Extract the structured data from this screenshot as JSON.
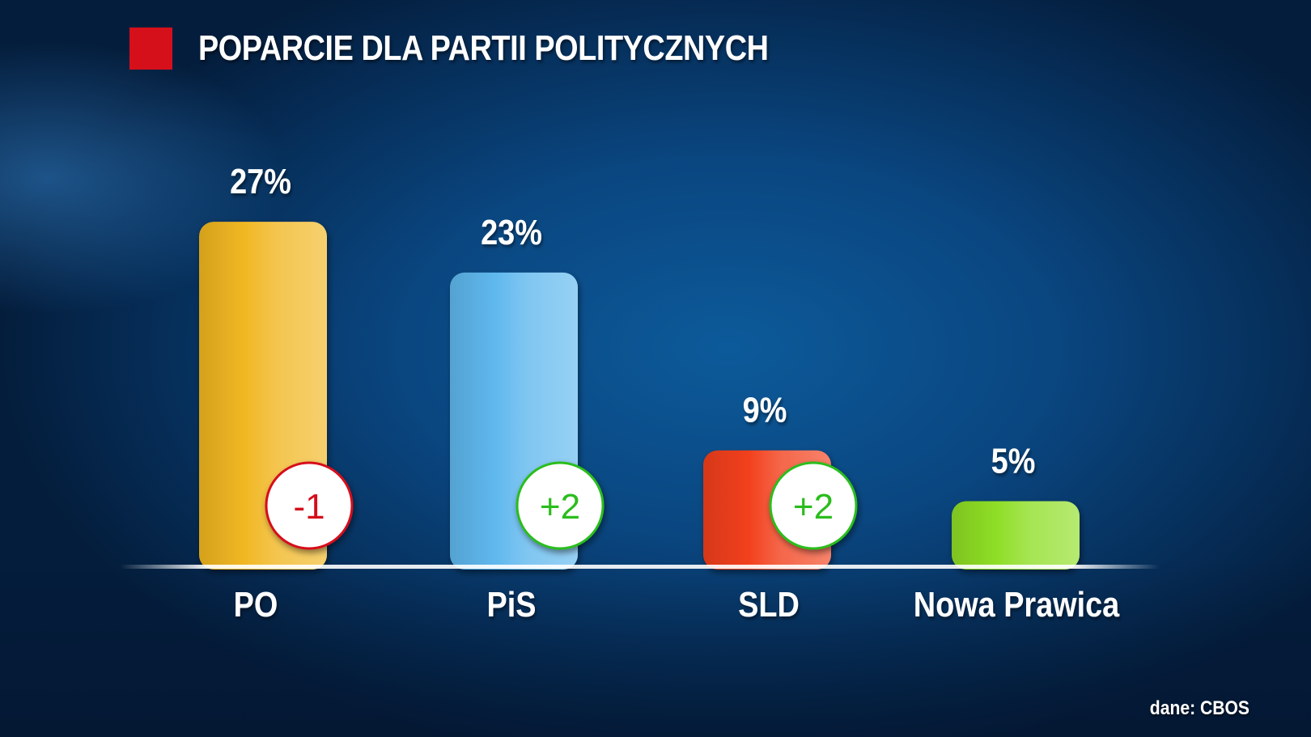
{
  "title": "POPARCIE DLA PARTII POLITYCZNYCH",
  "source": "dane: CBOS",
  "colors": {
    "title_marker": "#d6101b",
    "badge_negative": "#d6101b",
    "badge_positive": "#2bbd1c"
  },
  "chart_data": {
    "type": "bar",
    "title": "POPARCIE DLA PARTII POLITYCZNYCH",
    "xlabel": "",
    "ylabel": "",
    "ylim": [
      0,
      30
    ],
    "grid": false,
    "categories": [
      "PO",
      "PiS",
      "SLD",
      "Nowa Prawica"
    ],
    "values": [
      27,
      23,
      9,
      5
    ],
    "value_labels": [
      "27%",
      "23%",
      "9%",
      "5%"
    ],
    "changes": [
      "-1",
      "+2",
      "+2",
      null
    ],
    "bar_colors": [
      "#f1b722",
      "#5fb8ee",
      "#f2401c",
      "#8fde26"
    ]
  }
}
